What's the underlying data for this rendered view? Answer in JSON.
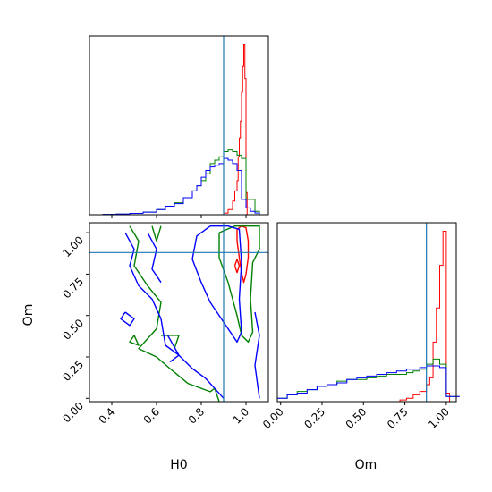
{
  "chart_data": [
    {
      "type": "histogram",
      "xlim": [
        0.3,
        1.1
      ],
      "truth": 0.9,
      "tick_values": [
        0.4,
        0.6,
        0.8,
        1.0
      ],
      "series": [
        {
          "color": "#ff0000",
          "x": [
            0.88,
            0.9,
            0.92,
            0.94,
            0.95,
            0.96,
            0.965,
            0.97,
            0.975,
            0.98,
            0.985,
            0.99,
            0.995,
            1.0,
            1.005
          ],
          "values": [
            0,
            0.01,
            0.03,
            0.08,
            0.14,
            0.2,
            0.34,
            0.45,
            0.55,
            0.72,
            0.87,
            1.0,
            0.8,
            0.13,
            0
          ]
        },
        {
          "color": "#008000",
          "x": [
            0.3,
            0.36,
            0.42,
            0.48,
            0.54,
            0.6,
            0.64,
            0.68,
            0.72,
            0.76,
            0.78,
            0.8,
            0.82,
            0.84,
            0.86,
            0.88,
            0.9,
            0.92,
            0.94,
            0.96,
            0.98,
            1.0,
            1.02,
            1.04,
            1.06
          ],
          "values": [
            0,
            0.002,
            0.004,
            0.008,
            0.015,
            0.03,
            0.05,
            0.07,
            0.1,
            0.14,
            0.17,
            0.2,
            0.24,
            0.3,
            0.32,
            0.34,
            0.37,
            0.38,
            0.37,
            0.35,
            0.33,
            0.09,
            0.09,
            0.02,
            0
          ]
        },
        {
          "color": "#0000ff",
          "x": [
            0.3,
            0.36,
            0.42,
            0.48,
            0.54,
            0.6,
            0.64,
            0.68,
            0.72,
            0.76,
            0.78,
            0.8,
            0.82,
            0.84,
            0.86,
            0.88,
            0.9,
            0.92,
            0.94,
            0.96,
            0.98,
            1.0,
            1.02,
            1.04,
            1.06
          ],
          "values": [
            0,
            0.002,
            0.004,
            0.008,
            0.015,
            0.03,
            0.05,
            0.065,
            0.1,
            0.14,
            0.17,
            0.22,
            0.26,
            0.28,
            0.29,
            0.3,
            0.33,
            0.32,
            0.3,
            0.26,
            0.09,
            0.04,
            0.02,
            0.01,
            0
          ]
        }
      ]
    },
    {
      "type": "contour",
      "xlabel": "H0",
      "ylabel": "Om",
      "xlim": [
        0.3,
        1.1
      ],
      "ylim": [
        -0.02,
        1.06
      ],
      "truth_x": 0.9,
      "truth_y": 0.88,
      "x_ticks": [
        "0.4",
        "0.6",
        "0.8",
        "1.0"
      ],
      "x_tick_values": [
        0.4,
        0.6,
        0.8,
        1.0
      ],
      "y_ticks": [
        "0.00",
        "0.25",
        "0.50",
        "0.75",
        "1.00"
      ],
      "y_tick_values": [
        0.0,
        0.25,
        0.5,
        0.75,
        1.0
      ],
      "series": [
        {
          "color": "#ff0000",
          "contours": [
            [
              [
                0.96,
                1.02
              ],
              [
                0.98,
                1.04
              ],
              [
                1.0,
                1.03
              ],
              [
                1.01,
                0.95
              ],
              [
                1.01,
                0.85
              ],
              [
                1.0,
                0.75
              ],
              [
                0.99,
                0.7
              ],
              [
                0.98,
                0.76
              ],
              [
                0.97,
                0.85
              ],
              [
                0.96,
                0.95
              ],
              [
                0.96,
                1.02
              ]
            ],
            [
              [
                0.95,
                0.8
              ],
              [
                0.96,
                0.84
              ],
              [
                0.97,
                0.8
              ],
              [
                0.96,
                0.76
              ],
              [
                0.95,
                0.8
              ]
            ]
          ]
        },
        {
          "color": "#008000",
          "contours": [
            [
              [
                0.88,
                1.0
              ],
              [
                0.95,
                1.04
              ],
              [
                1.06,
                1.04
              ],
              [
                1.06,
                0.9
              ],
              [
                1.03,
                0.82
              ],
              [
                1.02,
                0.6
              ],
              [
                1.03,
                0.4
              ],
              [
                1.01,
                0.34
              ],
              [
                0.98,
                0.38
              ],
              [
                0.96,
                0.5
              ],
              [
                0.92,
                0.7
              ],
              [
                0.88,
                0.85
              ],
              [
                0.88,
                1.0
              ]
            ],
            [
              [
                0.48,
                1.04
              ],
              [
                0.52,
                0.95
              ],
              [
                0.5,
                0.8
              ],
              [
                0.56,
                0.68
              ],
              [
                0.62,
                0.58
              ],
              [
                0.6,
                0.42
              ],
              [
                0.52,
                0.3
              ],
              [
                0.6,
                0.25
              ],
              [
                0.66,
                0.18
              ],
              [
                0.74,
                0.09
              ],
              [
                0.84,
                0.04
              ],
              [
                0.86,
                0.06
              ],
              [
                0.88,
                -0.02
              ]
            ],
            [
              [
                0.58,
                1.04
              ],
              [
                0.6,
                0.95
              ],
              [
                0.62,
                1.04
              ]
            ],
            [
              [
                0.5,
                0.38
              ],
              [
                0.48,
                0.34
              ],
              [
                0.52,
                0.32
              ],
              [
                0.5,
                0.38
              ]
            ],
            [
              [
                0.62,
                0.38
              ],
              [
                0.7,
                0.38
              ],
              [
                0.68,
                0.3
              ]
            ]
          ]
        },
        {
          "color": "#0000ff",
          "contours": [
            [
              [
                0.84,
                1.04
              ],
              [
                0.78,
                0.98
              ],
              [
                0.76,
                0.84
              ],
              [
                0.8,
                0.7
              ],
              [
                0.84,
                0.58
              ],
              [
                0.9,
                0.46
              ],
              [
                0.96,
                0.34
              ],
              [
                0.98,
                0.4
              ],
              [
                0.97,
                0.6
              ],
              [
                0.98,
                0.82
              ],
              [
                0.97,
                1.02
              ],
              [
                0.92,
                1.04
              ],
              [
                0.84,
                1.04
              ]
            ],
            [
              [
                0.46,
                1.0
              ],
              [
                0.5,
                0.9
              ],
              [
                0.48,
                0.8
              ],
              [
                0.52,
                0.68
              ],
              [
                0.58,
                0.6
              ],
              [
                0.62,
                0.48
              ],
              [
                0.64,
                0.32
              ],
              [
                0.7,
                0.26
              ],
              [
                0.76,
                0.18
              ],
              [
                0.82,
                0.12
              ],
              [
                0.86,
                0.06
              ],
              [
                0.9,
                0.0
              ]
            ],
            [
              [
                0.56,
                1.0
              ],
              [
                0.6,
                0.9
              ],
              [
                0.58,
                0.78
              ],
              [
                0.62,
                0.7
              ]
            ],
            [
              [
                0.46,
                0.52
              ],
              [
                0.5,
                0.48
              ],
              [
                0.48,
                0.44
              ],
              [
                0.44,
                0.48
              ],
              [
                0.46,
                0.52
              ]
            ],
            [
              [
                1.04,
                0.52
              ],
              [
                1.06,
                0.38
              ],
              [
                1.04,
                0.2
              ],
              [
                1.06,
                0.0
              ]
            ],
            [
              [
                0.65,
                0.38
              ],
              [
                0.7,
                0.26
              ],
              [
                0.66,
                0.22
              ]
            ]
          ]
        }
      ]
    },
    {
      "type": "histogram",
      "xlabel": "Om",
      "xlim": [
        -0.02,
        1.06
      ],
      "truth": 0.88,
      "x_ticks": [
        "0.00",
        "0.25",
        "0.50",
        "0.75",
        "1.00"
      ],
      "x_tick_values": [
        0.0,
        0.25,
        0.5,
        0.75,
        1.0
      ],
      "series": [
        {
          "color": "#ff0000",
          "x": [
            0.68,
            0.72,
            0.76,
            0.8,
            0.84,
            0.88,
            0.9,
            0.92,
            0.94,
            0.96,
            0.98,
            1.0,
            1.02
          ],
          "values": [
            0,
            0.01,
            0.02,
            0.04,
            0.06,
            0.1,
            0.14,
            0.35,
            0.55,
            0.8,
            1.0,
            0.05,
            0
          ]
        },
        {
          "color": "#008000",
          "x": [
            -0.02,
            0.04,
            0.1,
            0.16,
            0.22,
            0.28,
            0.34,
            0.4,
            0.46,
            0.52,
            0.58,
            0.64,
            0.7,
            0.76,
            0.8,
            0.84,
            0.88,
            0.92,
            0.96,
            1.0,
            1.04
          ],
          "values": [
            0.02,
            0.04,
            0.06,
            0.07,
            0.09,
            0.1,
            0.12,
            0.13,
            0.13,
            0.14,
            0.15,
            0.16,
            0.16,
            0.17,
            0.18,
            0.19,
            0.22,
            0.25,
            0.22,
            0.03,
            0.03
          ]
        },
        {
          "color": "#0000ff",
          "x": [
            -0.02,
            0.04,
            0.1,
            0.16,
            0.22,
            0.28,
            0.34,
            0.4,
            0.46,
            0.52,
            0.58,
            0.64,
            0.7,
            0.76,
            0.8,
            0.84,
            0.88,
            0.92,
            0.96,
            1.0,
            1.04
          ],
          "values": [
            0.02,
            0.04,
            0.05,
            0.07,
            0.09,
            0.1,
            0.11,
            0.13,
            0.14,
            0.15,
            0.16,
            0.17,
            0.18,
            0.19,
            0.19,
            0.2,
            0.21,
            0.21,
            0.2,
            0.03,
            0.03
          ]
        }
      ]
    }
  ]
}
